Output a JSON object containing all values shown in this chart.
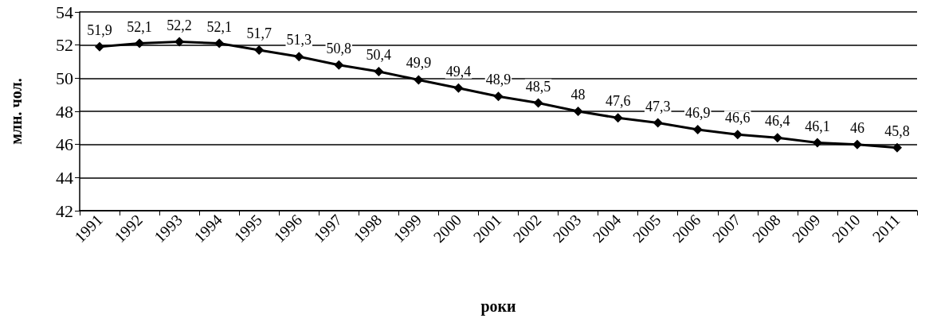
{
  "chart_data": {
    "type": "line",
    "xlabel": "роки",
    "ylabel": "млн. чол.",
    "categories": [
      "1991",
      "1992",
      "1993",
      "1994",
      "1995",
      "1996",
      "1997",
      "1998",
      "1999",
      "2000",
      "2001",
      "2002",
      "2003",
      "2004",
      "2005",
      "2006",
      "2007",
      "2008",
      "2009",
      "2010",
      "2011"
    ],
    "series": [
      {
        "color": "#000000",
        "values": [
          51.9,
          52.1,
          52.2,
          52.1,
          51.7,
          51.3,
          50.8,
          50.4,
          49.9,
          49.4,
          48.9,
          48.5,
          48,
          47.6,
          47.3,
          46.9,
          46.6,
          46.4,
          46.1,
          46,
          45.8
        ],
        "value_labels": [
          "51,9",
          "52,1",
          "52,2",
          "52,1",
          "51,7",
          "51,3",
          "50,8",
          "50,4",
          "49,9",
          "49,4",
          "48,9",
          "48,5",
          "48",
          "47,6",
          "47,3",
          "46,9",
          "46,6",
          "46,4",
          "46,1",
          "46",
          "45,8"
        ]
      }
    ],
    "ylim": [
      42,
      54
    ],
    "yticks": [
      42,
      44,
      46,
      48,
      50,
      52,
      54
    ],
    "grid": "y",
    "marker": "diamond",
    "line_style": "solid"
  }
}
